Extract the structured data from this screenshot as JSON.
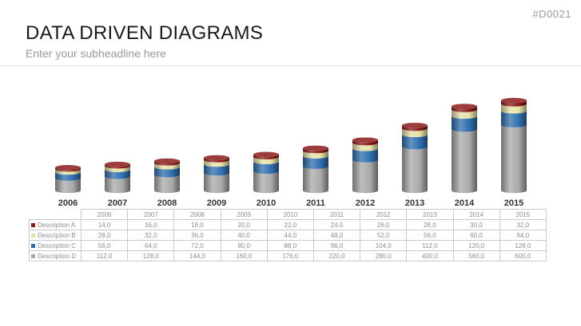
{
  "slide_id": "#D0021",
  "title": "DATA DRIVEN DIAGRAMS",
  "subtitle": "Enter your subheadline here",
  "colors": {
    "description_a": "#8b1a1a",
    "description_b": "#e6e2a6",
    "description_c": "#2f6fae",
    "description_d": "#a9a9a9"
  },
  "chart_data": {
    "type": "bar",
    "stacked": true,
    "style": "3d-cylinder",
    "categories": [
      "2006",
      "2007",
      "2008",
      "2009",
      "2010",
      "2011",
      "2012",
      "2013",
      "2014",
      "2015"
    ],
    "series": [
      {
        "name": "Description A",
        "values": [
          14.0,
          16.0,
          18.0,
          20.0,
          22.0,
          24.0,
          26.0,
          28.0,
          30.0,
          32.0
        ]
      },
      {
        "name": "Description B",
        "values": [
          28.0,
          32.0,
          36.0,
          40.0,
          44.0,
          48.0,
          52.0,
          56.0,
          60.0,
          64.0
        ]
      },
      {
        "name": "Description C",
        "values": [
          56.0,
          64.0,
          72.0,
          80.0,
          88.0,
          96.0,
          104.0,
          112.0,
          120.0,
          128.0
        ]
      },
      {
        "name": "Description D",
        "values": [
          112.0,
          128.0,
          144.0,
          160.0,
          176.0,
          220.0,
          280.0,
          400.0,
          560.0,
          600.0
        ]
      }
    ],
    "table": {
      "header": [
        "2006",
        "2007",
        "2008",
        "2009",
        "2010",
        "2011",
        "2012",
        "2013",
        "2014",
        "2015"
      ],
      "rows": [
        {
          "label": "Description A",
          "cells": [
            "14,0",
            "16,0",
            "18,0",
            "20,0",
            "22,0",
            "24,0",
            "26,0",
            "28,0",
            "30,0",
            "32,0"
          ]
        },
        {
          "label": "Description B",
          "cells": [
            "28,0",
            "32,0",
            "36,0",
            "40,0",
            "44,0",
            "48,0",
            "52,0",
            "56,0",
            "60,0",
            "64,0"
          ]
        },
        {
          "label": "Description C",
          "cells": [
            "56,0",
            "64,0",
            "72,0",
            "80,0",
            "88,0",
            "96,0",
            "104,0",
            "112,0",
            "120,0",
            "128,0"
          ]
        },
        {
          "label": "Description D",
          "cells": [
            "112,0",
            "128,0",
            "144,0",
            "160,0",
            "176,0",
            "220,0",
            "280,0",
            "400,0",
            "560,0",
            "600,0"
          ]
        }
      ]
    },
    "grid": false,
    "legend": "table-below"
  }
}
